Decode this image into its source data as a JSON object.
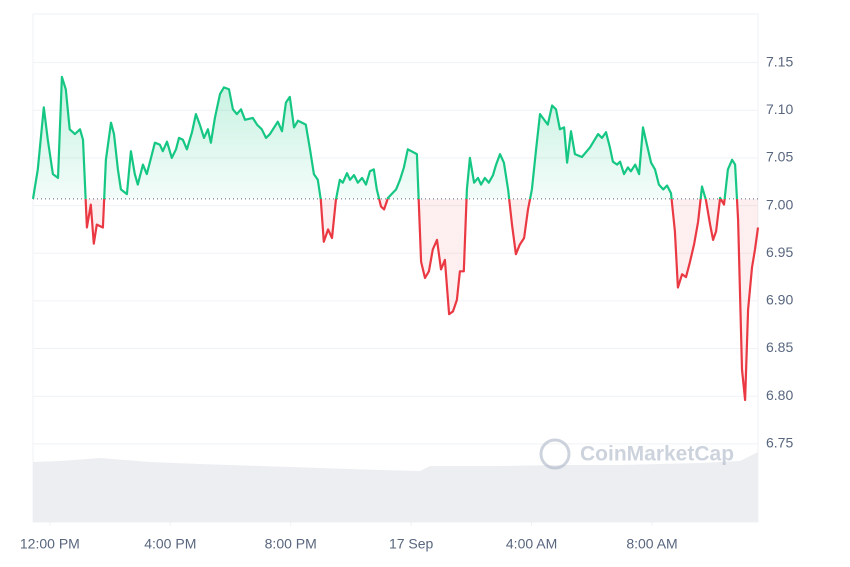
{
  "chart_data": {
    "type": "line",
    "watermark": "CoinMarketCap",
    "baseline": 7.007,
    "up_color": "#16c784",
    "down_color": "#ea3943",
    "xlim": [
      -0.56,
      23.52
    ],
    "xticks": [
      {
        "value": 0,
        "label": "12:00 PM"
      },
      {
        "value": 4,
        "label": "4:00 PM"
      },
      {
        "value": 8,
        "label": "8:00 PM"
      },
      {
        "value": 12,
        "label": "17 Sep"
      },
      {
        "value": 16,
        "label": "4:00 AM"
      },
      {
        "value": 20,
        "label": "8:00 AM"
      }
    ],
    "ylim": [
      6.668,
      7.201
    ],
    "yticks": [
      6.75,
      {
        "value": 6.8,
        "label": "6.80"
      },
      6.85,
      {
        "value": 6.9,
        "label": "6.90"
      },
      6.95,
      {
        "value": 7.0,
        "label": "7.00"
      },
      7.05,
      {
        "value": 7.1,
        "label": "7.10"
      },
      7.15
    ],
    "grid": true,
    "x": [
      -0.56,
      -0.4,
      -0.2,
      -0.07,
      0.1,
      0.27,
      0.4,
      0.53,
      0.66,
      0.83,
      1.0,
      1.1,
      1.23,
      1.36,
      1.46,
      1.56,
      1.76,
      1.86,
      2.03,
      2.13,
      2.26,
      2.36,
      2.56,
      2.69,
      2.82,
      2.92,
      3.09,
      3.22,
      3.36,
      3.49,
      3.65,
      3.75,
      3.89,
      4.05,
      4.19,
      4.29,
      4.42,
      4.55,
      4.72,
      4.85,
      4.98,
      5.12,
      5.25,
      5.35,
      5.48,
      5.65,
      5.78,
      5.95,
      6.08,
      6.21,
      6.35,
      6.48,
      6.74,
      6.88,
      7.04,
      7.18,
      7.31,
      7.57,
      7.71,
      7.84,
      7.97,
      8.11,
      8.24,
      8.5,
      8.64,
      8.77,
      8.9,
      9.0,
      9.1,
      9.24,
      9.37,
      9.5,
      9.63,
      9.73,
      9.87,
      9.97,
      10.1,
      10.23,
      10.37,
      10.5,
      10.63,
      10.76,
      10.86,
      11.0,
      11.1,
      11.23,
      11.5,
      11.63,
      11.76,
      11.89,
      12.19,
      12.33,
      12.46,
      12.59,
      12.72,
      12.86,
      12.99,
      13.12,
      13.26,
      13.39,
      13.52,
      13.62,
      13.75,
      13.85,
      13.95,
      14.09,
      14.22,
      14.32,
      14.45,
      14.58,
      14.72,
      14.82,
      14.95,
      15.08,
      15.22,
      15.35,
      15.48,
      15.61,
      15.75,
      15.88,
      16.01,
      16.15,
      16.28,
      16.54,
      16.68,
      16.81,
      16.94,
      17.08,
      17.18,
      17.31,
      17.44,
      17.67,
      17.94,
      18.21,
      18.34,
      18.47,
      18.6,
      18.7,
      18.84,
      18.94,
      19.07,
      19.2,
      19.3,
      19.44,
      19.57,
      19.7,
      19.83,
      19.97,
      20.1,
      20.23,
      20.37,
      20.5,
      20.63,
      20.76,
      20.86,
      21.0,
      21.13,
      21.26,
      21.4,
      21.53,
      21.66,
      21.79,
      21.93,
      22.03,
      22.13,
      22.26,
      22.39,
      22.52,
      22.66,
      22.76,
      22.86,
      22.99,
      23.09,
      23.19,
      23.32,
      23.42,
      23.52
    ],
    "values": [
      7.007,
      7.038,
      7.103,
      7.069,
      7.033,
      7.029,
      7.135,
      7.122,
      7.08,
      7.075,
      7.08,
      7.069,
      6.977,
      7.001,
      6.96,
      6.98,
      6.977,
      7.048,
      7.087,
      7.075,
      7.038,
      7.017,
      7.012,
      7.057,
      7.033,
      7.022,
      7.043,
      7.033,
      7.05,
      7.066,
      7.064,
      7.057,
      7.067,
      7.05,
      7.059,
      7.071,
      7.069,
      7.059,
      7.077,
      7.096,
      7.085,
      7.071,
      7.08,
      7.066,
      7.092,
      7.117,
      7.124,
      7.122,
      7.101,
      7.096,
      7.101,
      7.09,
      7.092,
      7.085,
      7.08,
      7.071,
      7.075,
      7.088,
      7.078,
      7.108,
      7.114,
      7.082,
      7.089,
      7.085,
      7.059,
      7.033,
      7.027,
      7.006,
      6.962,
      6.975,
      6.966,
      7.006,
      7.027,
      7.024,
      7.034,
      7.027,
      7.032,
      7.024,
      7.029,
      7.022,
      7.036,
      7.038,
      7.017,
      6.999,
      6.996,
      7.008,
      7.017,
      7.027,
      7.04,
      7.059,
      7.054,
      6.941,
      6.924,
      6.931,
      6.954,
      6.964,
      6.933,
      6.943,
      6.886,
      6.889,
      6.901,
      6.931,
      6.931,
      7.017,
      7.05,
      7.024,
      7.029,
      7.022,
      7.029,
      7.024,
      7.032,
      7.043,
      7.054,
      7.045,
      7.017,
      6.98,
      6.949,
      6.959,
      6.966,
      6.996,
      7.017,
      7.059,
      7.096,
      7.085,
      7.105,
      7.101,
      7.08,
      7.082,
      7.045,
      7.078,
      7.054,
      7.051,
      7.061,
      7.075,
      7.071,
      7.077,
      7.061,
      7.046,
      7.043,
      7.046,
      7.033,
      7.04,
      7.036,
      7.043,
      7.033,
      7.082,
      7.064,
      7.045,
      7.038,
      7.022,
      7.017,
      7.021,
      7.013,
      6.973,
      6.914,
      6.928,
      6.925,
      6.941,
      6.96,
      6.983,
      7.02,
      7.006,
      6.98,
      6.964,
      6.973,
      7.008,
      7.001,
      7.038,
      7.048,
      7.043,
      6.985,
      6.828,
      6.796,
      6.891,
      6.935,
      6.954,
      6.977
    ]
  }
}
